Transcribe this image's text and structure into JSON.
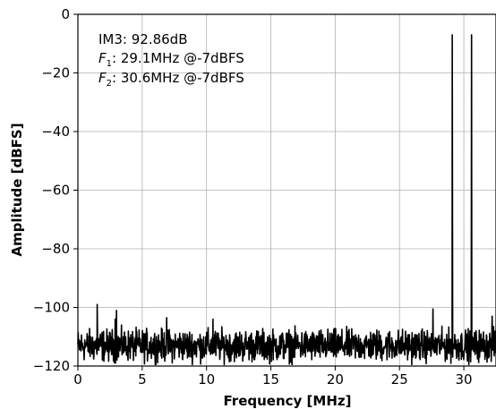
{
  "chart_data": {
    "type": "line",
    "xlabel": "Frequency [MHz]",
    "ylabel": "Amplitude [dBFS]",
    "xlim": [
      0,
      32.5
    ],
    "ylim": [
      -120,
      0
    ],
    "xticks": [
      0,
      5,
      10,
      15,
      20,
      25,
      30
    ],
    "yticks": [
      0,
      -20,
      -40,
      -60,
      -80,
      -100,
      -120
    ],
    "grid": true,
    "line_color": "#000000",
    "annotations": {
      "im3": "IM3: 92.86dB",
      "f1_sym": "F",
      "f1_sub": "1",
      "f1_text": ": 29.1MHz @-7dBFS",
      "f2_sym": "F",
      "f2_sub": "2",
      "f2_text": ": 30.6MHz @-7dBFS"
    },
    "noise_floor": {
      "x_start": 0,
      "x_end": 32.5,
      "mean_dbfs": -113,
      "spread_db": 4
    },
    "series": [
      {
        "peaks": [
          {
            "x": 1.5,
            "y": -99
          },
          {
            "x": 2.9,
            "y": -104
          },
          {
            "x": 3.0,
            "y": -101
          },
          {
            "x": 6.9,
            "y": -103.5
          },
          {
            "x": 10.5,
            "y": -104
          },
          {
            "x": 27.6,
            "y": -100.5
          },
          {
            "x": 29.1,
            "y": -7
          },
          {
            "x": 30.6,
            "y": -7
          },
          {
            "x": 32.2,
            "y": -103
          }
        ]
      }
    ]
  }
}
